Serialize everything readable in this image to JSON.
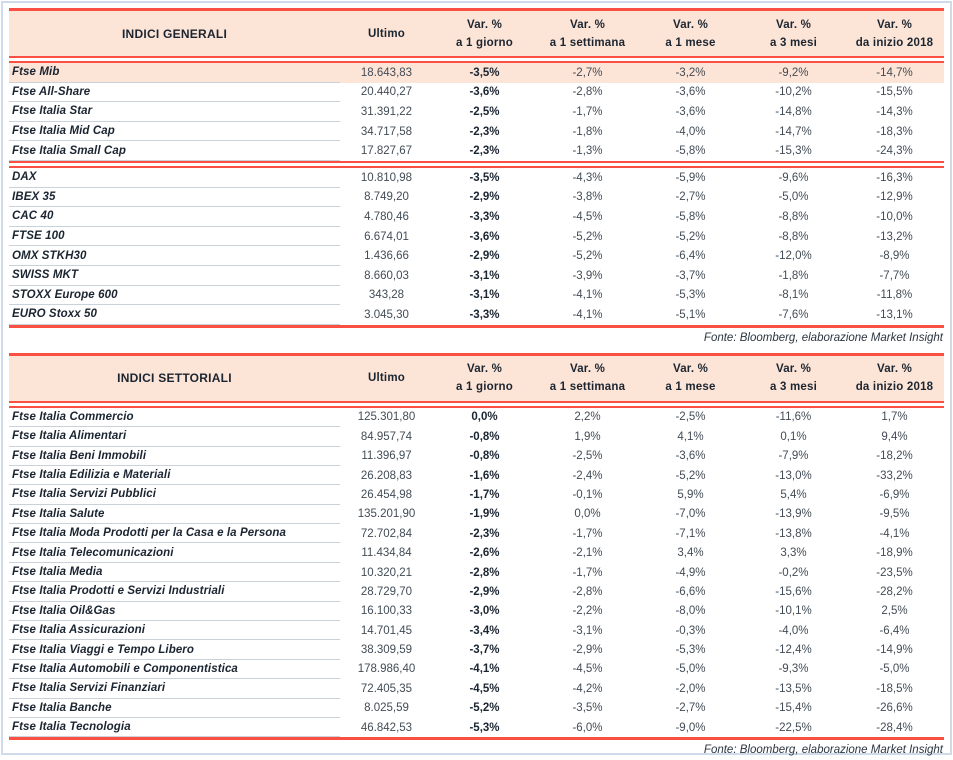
{
  "page": {
    "frame_color": "#cfdbea",
    "accent_red": "#f95043",
    "header_fill": "#fce4d6",
    "highlight_fill": "#fce4d6"
  },
  "tables": [
    {
      "title": "INDICI GENERALI",
      "col_ultimo": "Ultimo",
      "pct_columns": [
        {
          "line1": "Var. %",
          "line2": "a 1 giorno"
        },
        {
          "line1": "Var. %",
          "line2": "a 1 settimana"
        },
        {
          "line1": "Var. %",
          "line2": "a 1 mese"
        },
        {
          "line1": "Var. %",
          "line2": "a 3 mesi"
        },
        {
          "line1": "Var. %",
          "line2": "da inizio 2018"
        }
      ],
      "rows": [
        {
          "name": "Ftse Mib",
          "ultimo": "18.643,83",
          "var_1g": "-3,5%",
          "var_1s": "-2,7%",
          "var_1m": "-3,2%",
          "var_3m": "-9,2%",
          "var_ytd": "-14,7%",
          "emphasis": true
        },
        {
          "name": "Ftse All-Share",
          "ultimo": "20.440,27",
          "var_1g": "-3,6%",
          "var_1s": "-2,8%",
          "var_1m": "-3,6%",
          "var_3m": "-10,2%",
          "var_ytd": "-15,5%"
        },
        {
          "name": "Ftse Italia Star",
          "ultimo": "31.391,22",
          "var_1g": "-2,5%",
          "var_1s": "-1,7%",
          "var_1m": "-3,6%",
          "var_3m": "-14,8%",
          "var_ytd": "-14,3%"
        },
        {
          "name": "Ftse Italia Mid Cap",
          "ultimo": "34.717,58",
          "var_1g": "-2,3%",
          "var_1s": "-1,8%",
          "var_1m": "-4,0%",
          "var_3m": "-14,7%",
          "var_ytd": "-18,3%"
        },
        {
          "name": "Ftse Italia Small Cap",
          "ultimo": "17.827,67",
          "var_1g": "-2,3%",
          "var_1s": "-1,3%",
          "var_1m": "-5,8%",
          "var_3m": "-15,3%",
          "var_ytd": "-24,3%"
        },
        {
          "name": "DAX",
          "ultimo": "10.810,98",
          "var_1g": "-3,5%",
          "var_1s": "-4,3%",
          "var_1m": "-5,9%",
          "var_3m": "-9,6%",
          "var_ytd": "-16,3%",
          "group_start": true
        },
        {
          "name": "IBEX 35",
          "ultimo": "8.749,20",
          "var_1g": "-2,9%",
          "var_1s": "-3,8%",
          "var_1m": "-2,7%",
          "var_3m": "-5,0%",
          "var_ytd": "-12,9%"
        },
        {
          "name": "CAC 40",
          "ultimo": "4.780,46",
          "var_1g": "-3,3%",
          "var_1s": "-4,5%",
          "var_1m": "-5,8%",
          "var_3m": "-8,8%",
          "var_ytd": "-10,0%"
        },
        {
          "name": "FTSE 100",
          "ultimo": "6.674,01",
          "var_1g": "-3,6%",
          "var_1s": "-5,2%",
          "var_1m": "-5,2%",
          "var_3m": "-8,8%",
          "var_ytd": "-13,2%"
        },
        {
          "name": "OMX STKH30",
          "ultimo": "1.436,66",
          "var_1g": "-2,9%",
          "var_1s": "-5,2%",
          "var_1m": "-6,4%",
          "var_3m": "-12,0%",
          "var_ytd": "-8,9%"
        },
        {
          "name": "SWISS MKT",
          "ultimo": "8.660,03",
          "var_1g": "-3,1%",
          "var_1s": "-3,9%",
          "var_1m": "-3,7%",
          "var_3m": "-1,8%",
          "var_ytd": "-7,7%"
        },
        {
          "name": "STOXX Europe 600",
          "ultimo": "343,28",
          "var_1g": "-3,1%",
          "var_1s": "-4,1%",
          "var_1m": "-5,3%",
          "var_3m": "-8,1%",
          "var_ytd": "-11,8%"
        },
        {
          "name": "EURO Stoxx 50",
          "ultimo": "3.045,30",
          "var_1g": "-3,3%",
          "var_1s": "-4,1%",
          "var_1m": "-5,1%",
          "var_3m": "-7,6%",
          "var_ytd": "-13,1%"
        }
      ],
      "source": "Fonte: Bloomberg, elaborazione Market Insight"
    },
    {
      "title": "INDICI SETTORIALI",
      "col_ultimo": "Ultimo",
      "pct_columns": [
        {
          "line1": "Var. %",
          "line2": "a 1 giorno"
        },
        {
          "line1": "Var. %",
          "line2": "a 1 settimana"
        },
        {
          "line1": "Var. %",
          "line2": "a 1 mese"
        },
        {
          "line1": "Var. %",
          "line2": "a 3 mesi"
        },
        {
          "line1": "Var. %",
          "line2": "da inizio 2018"
        }
      ],
      "rows": [
        {
          "name": "Ftse Italia Commercio",
          "ultimo": "125.301,80",
          "var_1g": "0,0%",
          "var_1s": "2,2%",
          "var_1m": "-2,5%",
          "var_3m": "-11,6%",
          "var_ytd": "1,7%"
        },
        {
          "name": "Ftse Italia Alimentari",
          "ultimo": "84.957,74",
          "var_1g": "-0,8%",
          "var_1s": "1,9%",
          "var_1m": "4,1%",
          "var_3m": "0,1%",
          "var_ytd": "9,4%"
        },
        {
          "name": "Ftse Italia Beni Immobili",
          "ultimo": "11.396,97",
          "var_1g": "-0,8%",
          "var_1s": "-2,5%",
          "var_1m": "-3,6%",
          "var_3m": "-7,9%",
          "var_ytd": "-18,2%"
        },
        {
          "name": "Ftse Italia Edilizia e Materiali",
          "ultimo": "26.208,83",
          "var_1g": "-1,6%",
          "var_1s": "-2,4%",
          "var_1m": "-5,2%",
          "var_3m": "-13,0%",
          "var_ytd": "-33,2%"
        },
        {
          "name": "Ftse Italia Servizi Pubblici",
          "ultimo": "26.454,98",
          "var_1g": "-1,7%",
          "var_1s": "-0,1%",
          "var_1m": "5,9%",
          "var_3m": "5,4%",
          "var_ytd": "-6,9%"
        },
        {
          "name": "Ftse Italia Salute",
          "ultimo": "135.201,90",
          "var_1g": "-1,9%",
          "var_1s": "0,0%",
          "var_1m": "-7,0%",
          "var_3m": "-13,9%",
          "var_ytd": "-9,5%"
        },
        {
          "name": "Ftse Italia Moda Prodotti per la Casa e la Persona",
          "ultimo": "72.702,84",
          "var_1g": "-2,3%",
          "var_1s": "-1,7%",
          "var_1m": "-7,1%",
          "var_3m": "-13,8%",
          "var_ytd": "-4,1%"
        },
        {
          "name": "Ftse Italia Telecomunicazioni",
          "ultimo": "11.434,84",
          "var_1g": "-2,6%",
          "var_1s": "-2,1%",
          "var_1m": "3,4%",
          "var_3m": "3,3%",
          "var_ytd": "-18,9%"
        },
        {
          "name": "Ftse Italia Media",
          "ultimo": "10.320,21",
          "var_1g": "-2,8%",
          "var_1s": "-1,7%",
          "var_1m": "-4,9%",
          "var_3m": "-0,2%",
          "var_ytd": "-23,5%"
        },
        {
          "name": "Ftse Italia Prodotti e Servizi Industriali",
          "ultimo": "28.729,70",
          "var_1g": "-2,9%",
          "var_1s": "-2,8%",
          "var_1m": "-6,6%",
          "var_3m": "-15,6%",
          "var_ytd": "-28,2%"
        },
        {
          "name": "Ftse Italia Oil&Gas",
          "ultimo": "16.100,33",
          "var_1g": "-3,0%",
          "var_1s": "-2,2%",
          "var_1m": "-8,0%",
          "var_3m": "-10,1%",
          "var_ytd": "2,5%"
        },
        {
          "name": "Ftse Italia Assicurazioni",
          "ultimo": "14.701,45",
          "var_1g": "-3,4%",
          "var_1s": "-3,1%",
          "var_1m": "-0,3%",
          "var_3m": "-4,0%",
          "var_ytd": "-6,4%"
        },
        {
          "name": "Ftse Italia Viaggi e Tempo Libero",
          "ultimo": "38.309,59",
          "var_1g": "-3,7%",
          "var_1s": "-2,9%",
          "var_1m": "-5,3%",
          "var_3m": "-12,4%",
          "var_ytd": "-14,9%"
        },
        {
          "name": "Ftse Italia Automobili e Componentistica",
          "ultimo": "178.986,40",
          "var_1g": "-4,1%",
          "var_1s": "-4,5%",
          "var_1m": "-5,0%",
          "var_3m": "-9,3%",
          "var_ytd": "-5,0%"
        },
        {
          "name": "Ftse Italia Servizi Finanziari",
          "ultimo": "72.405,35",
          "var_1g": "-4,5%",
          "var_1s": "-4,2%",
          "var_1m": "-2,0%",
          "var_3m": "-13,5%",
          "var_ytd": "-18,5%"
        },
        {
          "name": "Ftse Italia Banche",
          "ultimo": "8.025,59",
          "var_1g": "-5,2%",
          "var_1s": "-3,5%",
          "var_1m": "-2,7%",
          "var_3m": "-15,4%",
          "var_ytd": "-26,6%"
        },
        {
          "name": "Ftse Italia Tecnologia",
          "ultimo": "46.842,53",
          "var_1g": "-5,3%",
          "var_1s": "-6,0%",
          "var_1m": "-9,0%",
          "var_3m": "-22,5%",
          "var_ytd": "-28,4%"
        }
      ],
      "source": "Fonte: Bloomberg, elaborazione Market Insight"
    }
  ]
}
